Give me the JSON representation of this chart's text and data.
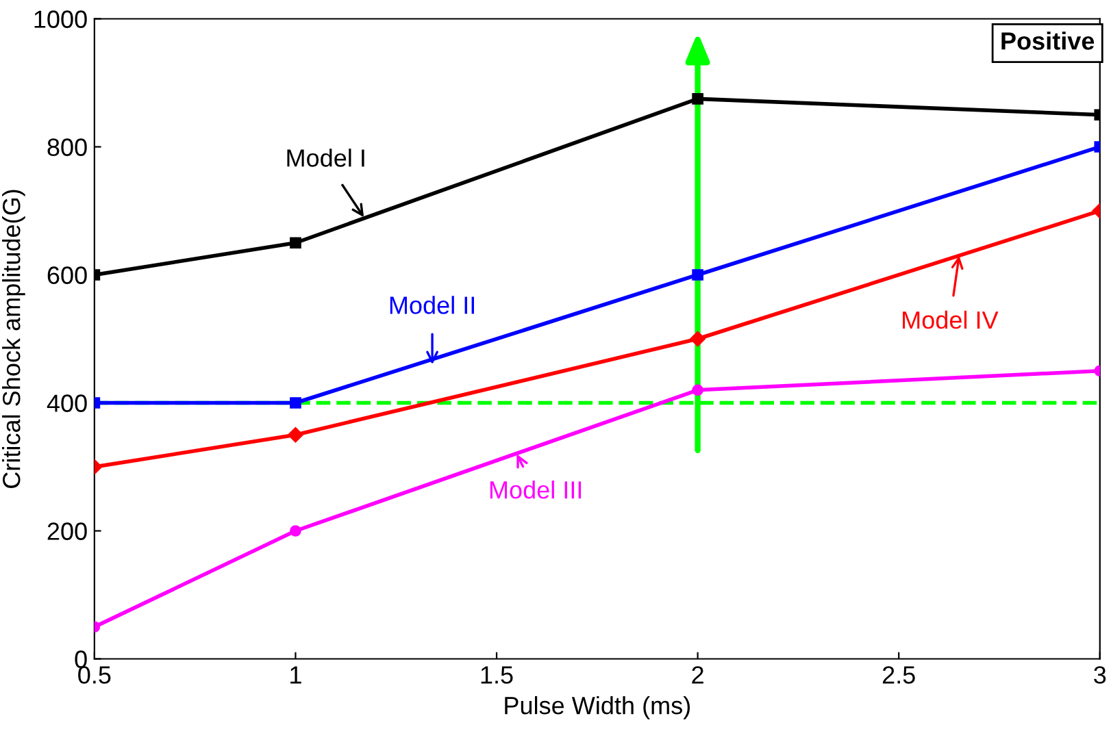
{
  "chart_data": {
    "type": "line",
    "xlabel": "Pulse Width (ms)",
    "ylabel": "Critical Shock amplitude(G)",
    "x": [
      0.5,
      1,
      2,
      3
    ],
    "series": [
      {
        "color": "#000000",
        "marker": "square",
        "values": [
          600,
          650,
          875,
          850
        ]
      },
      {
        "color": "#0000ff",
        "marker": "square",
        "values": [
          400,
          400,
          600,
          800
        ]
      },
      {
        "color": "#ff0000",
        "marker": "diamond",
        "values": [
          300,
          350,
          500,
          700
        ]
      },
      {
        "color": "#ff00ff",
        "marker": "circle",
        "values": [
          50,
          200,
          420,
          450
        ]
      }
    ],
    "annotations": [
      {
        "text": "Model I",
        "x": 1.17,
        "y": 690
      },
      {
        "text": "Model II",
        "x": 1.34,
        "y": 460
      },
      {
        "text": "Model IV",
        "x": 2.65,
        "y": 630
      },
      {
        "text": "Model III",
        "x": 1.55,
        "y": 320
      },
      "Positive"
    ],
    "ref_lines": [
      {
        "axis": "y",
        "value": 400,
        "color": "#00ff00",
        "line_style": "dashed"
      }
    ],
    "xlim": [
      0.5,
      3
    ],
    "xticks": [
      0.5,
      1,
      1.5,
      2,
      2.5,
      3
    ],
    "ylim": [
      0,
      1000
    ],
    "yticks": [
      0,
      200,
      400,
      600,
      800,
      1000
    ],
    "grid": false,
    "legend": false,
    "line_style": "solid"
  }
}
